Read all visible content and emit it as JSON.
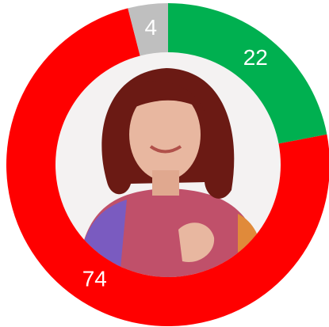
{
  "chart_data": {
    "type": "donut",
    "values": [
      22,
      74,
      4
    ],
    "colors": [
      "#00b050",
      "#ff0000",
      "#bfbfbf"
    ]
  }
}
